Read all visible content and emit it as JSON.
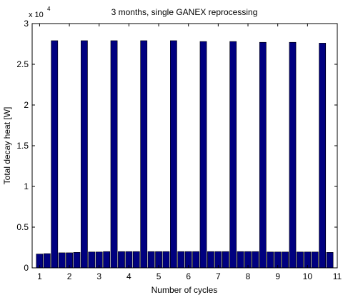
{
  "chart_data": {
    "type": "bar",
    "title": "3 months, single GANEX reprocessing",
    "xlabel": "Number of cycles",
    "ylabel": "Total decay heat [W]",
    "y_exponent_label": "x 10",
    "y_exponent_power": "4",
    "y_scale": 10000,
    "xlim": [
      0.75,
      11.0
    ],
    "ylim": [
      0,
      30000
    ],
    "x_ticks": [
      1,
      2,
      3,
      4,
      5,
      6,
      7,
      8,
      9,
      10,
      11
    ],
    "x_tick_labels": [
      "1",
      "2",
      "3",
      "4",
      "5",
      "6",
      "7",
      "8",
      "9",
      "10",
      "11"
    ],
    "y_ticks": [
      0,
      5000,
      10000,
      15000,
      20000,
      25000,
      30000
    ],
    "y_tick_labels": [
      "0",
      "0.5",
      "1",
      "1.5",
      "2",
      "2.5",
      "3"
    ],
    "bar_width": 0.22,
    "bar_color": "#000080",
    "bar_edge_color": "#000000",
    "grid": false,
    "x": [
      1.0,
      1.25,
      1.5,
      1.75,
      2.0,
      2.25,
      2.5,
      2.75,
      3.0,
      3.25,
      3.5,
      3.75,
      4.0,
      4.25,
      4.5,
      4.75,
      5.0,
      5.25,
      5.5,
      5.75,
      6.0,
      6.25,
      6.5,
      6.75,
      7.0,
      7.25,
      7.5,
      7.75,
      8.0,
      8.25,
      8.5,
      8.75,
      9.0,
      9.25,
      9.5,
      9.75,
      10.0,
      10.25,
      10.5,
      10.75
    ],
    "values": [
      1700,
      1750,
      27900,
      1850,
      1850,
      1900,
      27900,
      1950,
      1950,
      2000,
      27900,
      2000,
      2000,
      2000,
      27900,
      2000,
      2000,
      2000,
      27900,
      2000,
      2000,
      2000,
      27800,
      2000,
      2000,
      2000,
      27800,
      2000,
      2000,
      2000,
      27700,
      1950,
      1950,
      1950,
      27700,
      1950,
      1950,
      1950,
      27600,
      1900
    ]
  }
}
